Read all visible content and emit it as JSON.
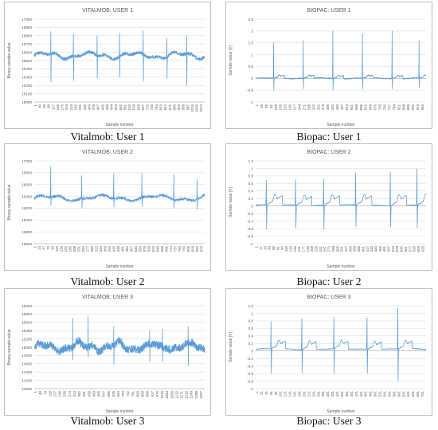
{
  "colors": {
    "line": "#5b9bd5",
    "grid": "#d9d9d9",
    "text": "#595959",
    "border": "#bfbfbf"
  },
  "chart_data": [
    {
      "type": "line",
      "title": "VITALMOB: USER 1",
      "caption": "Vitalmob: User 1",
      "xlabel": "Sample number",
      "ylabel": "Binary sample value",
      "ylim": [
        16000,
        17000
      ],
      "yticks": [
        "17000",
        "16900",
        "16800",
        "16700",
        "16600",
        "16500",
        "16400",
        "16300",
        "16200",
        "16100",
        "16000"
      ],
      "xticks": [
        "1",
        "30",
        "59",
        "88",
        "117",
        "146",
        "175",
        "204",
        "233",
        "262",
        "291",
        "320",
        "349",
        "378",
        "407",
        "436",
        "465",
        "494",
        "523",
        "552",
        "581",
        "610",
        "639",
        "668",
        "697",
        "726",
        "755",
        "784",
        "813",
        "842",
        "871",
        "900",
        "929",
        "958",
        "987",
        "1016",
        "1045",
        "1074"
      ],
      "grid": true,
      "signal": {
        "n": 1080,
        "baseline": 16560,
        "noise": 20,
        "wander": 50,
        "tslope": 8,
        "peaks": [
          [
            105,
            16850,
            16240
          ],
          [
            248,
            16820,
            16260
          ],
          [
            398,
            16800,
            16290
          ],
          [
            540,
            16830,
            16300
          ],
          [
            690,
            16860,
            16250
          ],
          [
            840,
            16770,
            16280
          ],
          [
            965,
            16800,
            16200
          ]
        ]
      }
    },
    {
      "type": "line",
      "title": "BIOPAC: USER 1",
      "caption": "Biopac: User 1",
      "xlabel": "Sample number",
      "ylabel": "Sample value [V]",
      "ylim": [
        -1,
        2.5
      ],
      "yticks": [
        "2.5",
        "2",
        "1.5",
        "1",
        "0.5",
        "0",
        "-0.5",
        "-1"
      ],
      "xticks": [
        "1",
        "28",
        "55",
        "82",
        "109",
        "136",
        "163",
        "190",
        "217",
        "244",
        "271",
        "298",
        "325",
        "352",
        "379",
        "406",
        "433",
        "460",
        "487",
        "514",
        "541",
        "568",
        "595",
        "622",
        "649",
        "676",
        "703",
        "730",
        "757",
        "784",
        "811",
        "838",
        "865",
        "892",
        "919",
        "946"
      ],
      "grid": true,
      "signal": {
        "n": 950,
        "baseline": 0,
        "noise": 0.02,
        "wander": 0.02,
        "tslope": 0.12,
        "peaks": [
          [
            100,
            1.5,
            -0.5
          ],
          [
            265,
            1.6,
            -0.45
          ],
          [
            430,
            2.0,
            -0.5
          ],
          [
            595,
            1.9,
            -0.45
          ],
          [
            760,
            2.0,
            -0.45
          ],
          [
            910,
            1.6,
            -0.4
          ]
        ]
      }
    },
    {
      "type": "line",
      "title": "VITALMOB: USER 2",
      "caption": "Vitalmob: User 2",
      "xlabel": "Sample number",
      "ylabel": "Binary sample value",
      "ylim": [
        15600,
        17000
      ],
      "yticks": [
        "17000",
        "16800",
        "16600",
        "16400",
        "16200",
        "16000",
        "15800",
        "15600"
      ],
      "xticks": [
        "1",
        "24",
        "47",
        "70",
        "93",
        "116",
        "139",
        "162",
        "185",
        "208",
        "231",
        "254",
        "277",
        "300",
        "323",
        "346",
        "369",
        "392",
        "415",
        "438",
        "461",
        "484",
        "507",
        "530",
        "553",
        "576",
        "599",
        "622",
        "645",
        "668",
        "691",
        "714",
        "737",
        "760",
        "783",
        "806",
        "829",
        "852",
        "875"
      ],
      "grid": true,
      "signal": {
        "n": 880,
        "baseline": 16370,
        "noise": 25,
        "wander": 60,
        "tslope": 10,
        "peaks": [
          [
            85,
            16900,
            16250
          ],
          [
            245,
            16750,
            16200
          ],
          [
            410,
            16780,
            16220
          ],
          [
            555,
            16790,
            16230
          ],
          [
            720,
            16770,
            16200
          ],
          [
            840,
            16680,
            16180
          ]
        ]
      }
    },
    {
      "type": "line",
      "title": "BIOPAC: USER 2",
      "caption": "Biopac: User 2",
      "xlabel": "Sample number",
      "ylabel": "Sample value [V]",
      "ylim": [
        -1,
        1.2
      ],
      "yticks": [
        "1.2",
        "1",
        "0.8",
        "0.6",
        "0.4",
        "0.2",
        "0",
        "-0.2",
        "-0.4",
        "-0.6",
        "-0.8",
        "-1"
      ],
      "xticks": [
        "1",
        "17",
        "33",
        "49",
        "65",
        "81",
        "97",
        "113",
        "129",
        "145",
        "161",
        "177",
        "193",
        "209",
        "225",
        "241",
        "257",
        "273",
        "289",
        "305",
        "321",
        "337",
        "353",
        "369",
        "385",
        "401",
        "417",
        "433",
        "449",
        "465",
        "481",
        "497",
        "513",
        "529",
        "545",
        "561",
        "577",
        "593",
        "609",
        "625"
      ],
      "grid": true,
      "signal": {
        "n": 640,
        "baseline": 0.02,
        "noise": 0.01,
        "wander": 0.02,
        "tslope": 0.25,
        "peaks": [
          [
            40,
            0.68,
            -0.62
          ],
          [
            150,
            0.7,
            -0.58
          ],
          [
            255,
            0.72,
            -0.62
          ],
          [
            375,
            0.88,
            -0.55
          ],
          [
            505,
            0.9,
            -0.56
          ],
          [
            605,
            0.98,
            -0.58
          ]
        ]
      }
    },
    {
      "type": "line",
      "title": "VITALMOB: USER 3",
      "caption": "Vitalmob: User 3",
      "xlabel": "Sample number",
      "ylabel": "Binary sample value",
      "ylim": [
        14000,
        16000
      ],
      "yticks": [
        "16000",
        "15800",
        "15600",
        "15400",
        "15200",
        "15000",
        "14800",
        "14600",
        "14400",
        "14200",
        "14000"
      ],
      "xticks": [
        "1",
        "40",
        "79",
        "118",
        "157",
        "196",
        "235",
        "274",
        "313",
        "352",
        "391",
        "430",
        "469",
        "508",
        "547",
        "586",
        "625",
        "664",
        "703",
        "742",
        "781",
        "820",
        "859",
        "898",
        "937",
        "976",
        "1015",
        "1054",
        "1093",
        "1132",
        "1171",
        "1210",
        "1249",
        "1288",
        "1327"
      ],
      "grid": true,
      "signal": {
        "n": 1330,
        "baseline": 15000,
        "noise": 90,
        "wander": 120,
        "tslope": 60,
        "peaks": [
          [
            300,
            15700,
            14700
          ],
          [
            420,
            15750,
            14750
          ],
          [
            620,
            15500,
            14600
          ],
          [
            900,
            15400,
            14650
          ],
          [
            1000,
            15450,
            14650
          ],
          [
            1200,
            15500,
            14550
          ]
        ]
      }
    },
    {
      "type": "line",
      "title": "BIOPAC: USER 3",
      "caption": "Biopac: User 3",
      "xlabel": "Sample number",
      "ylabel": "Sample value [V]",
      "ylim": [
        -1,
        1.2
      ],
      "yticks": [
        "1.2",
        "1",
        "0.8",
        "0.6",
        "0.4",
        "0.2",
        "0",
        "-0.2",
        "-0.4",
        "-0.6",
        "-0.8",
        "-1"
      ],
      "xticks": [
        "1",
        "21",
        "41",
        "61",
        "81",
        "101",
        "121",
        "141",
        "161",
        "181",
        "201",
        "221",
        "241",
        "261",
        "281",
        "301",
        "321",
        "341",
        "361",
        "381",
        "401",
        "421",
        "441",
        "461",
        "481",
        "501",
        "521",
        "541",
        "561",
        "581",
        "601",
        "621",
        "641",
        "661",
        "681",
        "701"
      ],
      "grid": true,
      "signal": {
        "n": 720,
        "baseline": 0.05,
        "noise": 0.01,
        "wander": 0.02,
        "tslope": 0.2,
        "peaks": [
          [
            65,
            0.78,
            -0.6
          ],
          [
            195,
            0.86,
            -0.6
          ],
          [
            330,
            0.9,
            -0.62
          ],
          [
            470,
            0.88,
            -0.6
          ],
          [
            600,
            1.15,
            -0.8
          ]
        ]
      }
    }
  ]
}
